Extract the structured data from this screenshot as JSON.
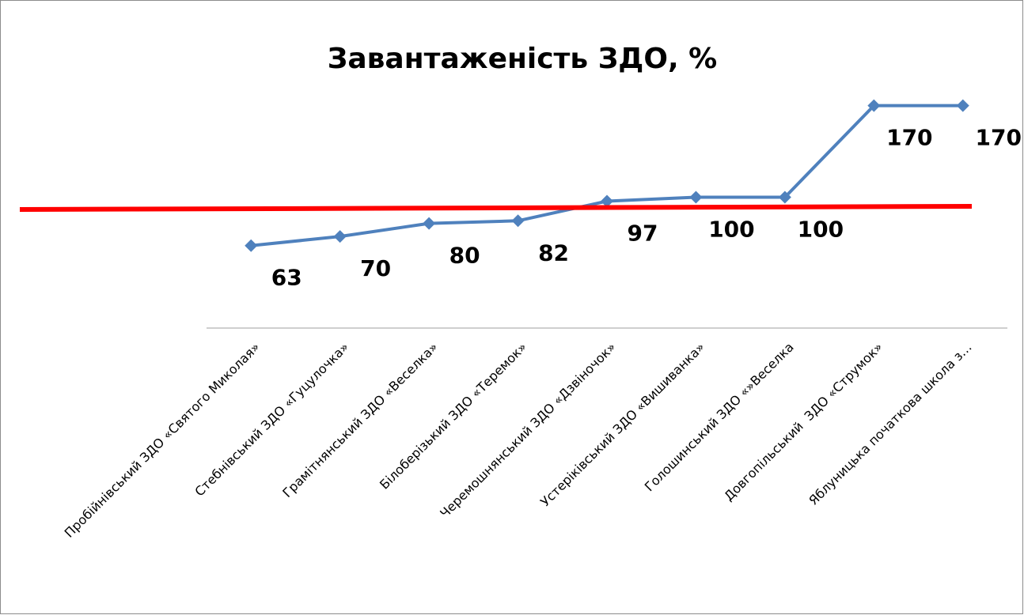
{
  "chart_data": {
    "type": "line",
    "title": "Завантаженість ЗДО, %",
    "categories": [
      "Пробійнівський ЗДО «Святого Миколая»",
      "Стебнівський ЗДО «Гуцулочка»",
      "Грамітнянський ЗДО «Веселка»",
      "Білоберізький ЗДО «Теремок»",
      "Черемошнянський ЗДО «Дзвіночок»",
      "Устеріківський ЗДО «Вишиванка»",
      "Голошинський ЗДО «»Веселка",
      "Довгопільський  ЗДО «Струмок»",
      "Яблуницька початкова школа з…"
    ],
    "series": [
      {
        "name": "Завантаженість ЗДО, %",
        "color": "#4f81bd",
        "values": [
          63,
          70,
          80,
          82,
          97,
          100,
          100,
          170,
          170
        ]
      }
    ],
    "ylim": [
      0,
      200
    ]
  }
}
